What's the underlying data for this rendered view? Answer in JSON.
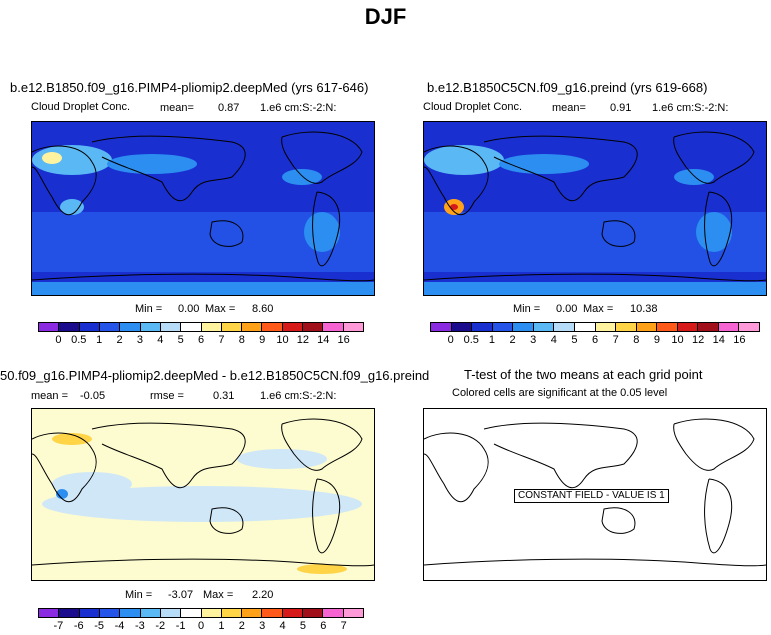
{
  "title": "DJF",
  "panels": [
    {
      "title": "b.e12.B1850.f09_g16.PIMP4-pliomip2.deepMed (yrs 617-646)",
      "field": "Cloud Droplet Conc.",
      "mean_label": "mean=",
      "mean": "0.87",
      "units": "1.e6 cm:S:-2:N:",
      "min_label": "Min =",
      "min": "0.00",
      "max_label": "Max =",
      "max": "8.60",
      "bg_color": "#1a2fd0",
      "colorbar_ticks": [
        "0",
        "0.5",
        "1",
        "2",
        "3",
        "4",
        "5",
        "6",
        "7",
        "8",
        "9",
        "10",
        "12",
        "14",
        "16"
      ]
    },
    {
      "title": "b.e12.B1850C5CN.f09_g16.preind (yrs 619-668)",
      "field": "Cloud Droplet Conc.",
      "mean_label": "mean=",
      "mean": "0.91",
      "units": "1.e6 cm:S:-2:N:",
      "min_label": "Min =",
      "min": "0.00",
      "max_label": "Max =",
      "max": "10.38",
      "bg_color": "#1a2fd0",
      "colorbar_ticks": [
        "0",
        "0.5",
        "1",
        "2",
        "3",
        "4",
        "5",
        "6",
        "7",
        "8",
        "9",
        "10",
        "12",
        "14",
        "16"
      ]
    },
    {
      "title": "50.f09_g16.PIMP4-pliomip2.deepMed - b.e12.B1850C5CN.f09_g16.preind",
      "mean_label": "mean =",
      "mean": "-0.05",
      "rmse_label": "rmse =",
      "rmse": "0.31",
      "units": "1.e6 cm:S:-2:N:",
      "min_label": "Min =",
      "min": "-3.07",
      "max_label": "Max =",
      "max": "2.20",
      "bg_color": "#fdfbd0",
      "colorbar_ticks": [
        "-7",
        "-6",
        "-5",
        "-4",
        "-3",
        "-2",
        "-1",
        "0",
        "1",
        "2",
        "3",
        "4",
        "5",
        "6",
        "7"
      ]
    },
    {
      "title": "T-test of the two means at each grid point",
      "subtitle": "Colored cells are significant at the 0.05 level",
      "constant_label": "CONSTANT FIELD - VALUE IS 1",
      "bg_color": "#ffffff"
    }
  ],
  "colorbar_colors": [
    "#8a2be2",
    "#1a0c8c",
    "#1a2fd0",
    "#2555e8",
    "#2b8ef0",
    "#5ab8f5",
    "#b6dcf7",
    "#ffffff",
    "#fff3a0",
    "#ffd447",
    "#ffa21a",
    "#ff5a1a",
    "#d61a1a",
    "#a00f1a",
    "#f564d0",
    "#ff9ad8"
  ]
}
